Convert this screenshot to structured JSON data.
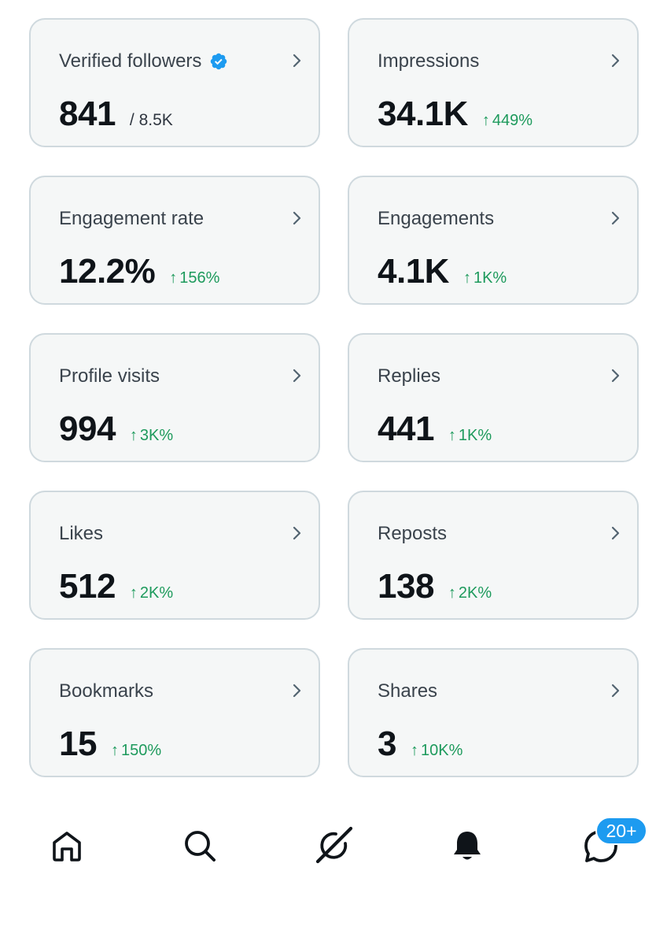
{
  "metrics": [
    {
      "label": "Verified followers",
      "value": "841",
      "total": "/ 8.5K",
      "change": "",
      "verified": true
    },
    {
      "label": "Impressions",
      "value": "34.1K",
      "total": "",
      "change": "449%"
    },
    {
      "label": "Engagement rate",
      "value": "12.2%",
      "total": "",
      "change": "156%"
    },
    {
      "label": "Engagements",
      "value": "4.1K",
      "total": "",
      "change": "1K%"
    },
    {
      "label": "Profile visits",
      "value": "994",
      "total": "",
      "change": "3K%"
    },
    {
      "label": "Replies",
      "value": "441",
      "total": "",
      "change": "1K%"
    },
    {
      "label": "Likes",
      "value": "512",
      "total": "",
      "change": "2K%"
    },
    {
      "label": "Reposts",
      "value": "138",
      "total": "",
      "change": "2K%"
    },
    {
      "label": "Bookmarks",
      "value": "15",
      "total": "",
      "change": "150%"
    },
    {
      "label": "Shares",
      "value": "3",
      "total": "",
      "change": "10K%"
    }
  ],
  "change_arrow": "↑",
  "nav": {
    "items": [
      {
        "icon": "home-icon"
      },
      {
        "icon": "search-icon"
      },
      {
        "icon": "grok-icon"
      },
      {
        "icon": "bell-icon"
      },
      {
        "icon": "messages-icon"
      }
    ],
    "messages_badge": "20+"
  },
  "colors": {
    "accent": "#1d9bf0",
    "positive": "#1d9a5c",
    "card_bg": "#f5f7f7",
    "card_border": "#cfd9de"
  }
}
